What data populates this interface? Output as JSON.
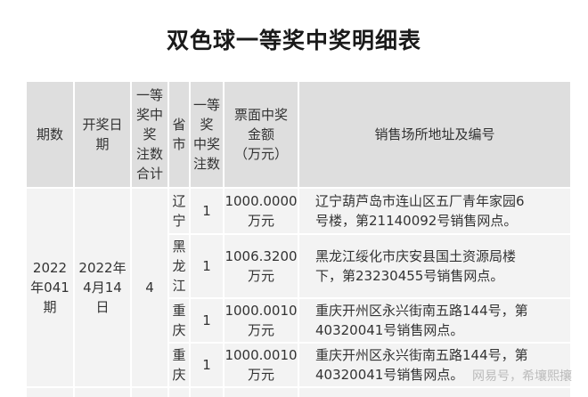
{
  "title": "双色球一等奖中奖明细表",
  "headers": [
    "期数",
    "开奖日期",
    "一等奖中奖注数合计",
    "省市",
    "一等奖中奖注数",
    "票面中奖金额（万元）",
    "销售场所地址及编号"
  ],
  "header_lines": {
    "c2": [
      "开奖日",
      "期"
    ],
    "c3": [
      "一等",
      "奖中",
      "奖",
      "注数",
      "合计"
    ],
    "c4": [
      "省",
      "市"
    ],
    "c5": [
      "一等",
      "奖",
      "中奖",
      "注数"
    ],
    "c6": [
      "票面中奖",
      "金额",
      "（万元）"
    ]
  },
  "group": {
    "issue": "2022年041期",
    "issue_lines": [
      "2022",
      "年041",
      "期"
    ],
    "date_lines": [
      "2022年",
      "4月14",
      "日"
    ],
    "total": "4"
  },
  "rows": [
    {
      "province": [
        "辽",
        "宁"
      ],
      "count": "1",
      "amount": [
        "1000.0000",
        "万元"
      ],
      "address": [
        "辽宁葫芦岛市连山区五厂青年家园6",
        "号楼，第21140092号销售网点。"
      ]
    },
    {
      "province": [
        "黑",
        "龙",
        "江"
      ],
      "count": "1",
      "amount": [
        "1006.3200",
        "万元"
      ],
      "address": [
        "黑龙江绥化市庆安县国土资源局楼",
        "下，第23230455号销售网点。"
      ]
    },
    {
      "province": [
        "重",
        "庆"
      ],
      "count": "1",
      "amount": [
        "1000.0010",
        "万元"
      ],
      "address": [
        "重庆开州区永兴街南五路144号，第",
        "40320041号销售网点。"
      ]
    },
    {
      "province": [
        "重",
        "庆"
      ],
      "count": "1",
      "amount": [
        "1000.0010",
        "万元"
      ],
      "address": [
        "重庆开州区永兴街南五路144号，第",
        "40320041号销售网点。"
      ]
    }
  ],
  "watermark": "网易号，希壤熙攘"
}
